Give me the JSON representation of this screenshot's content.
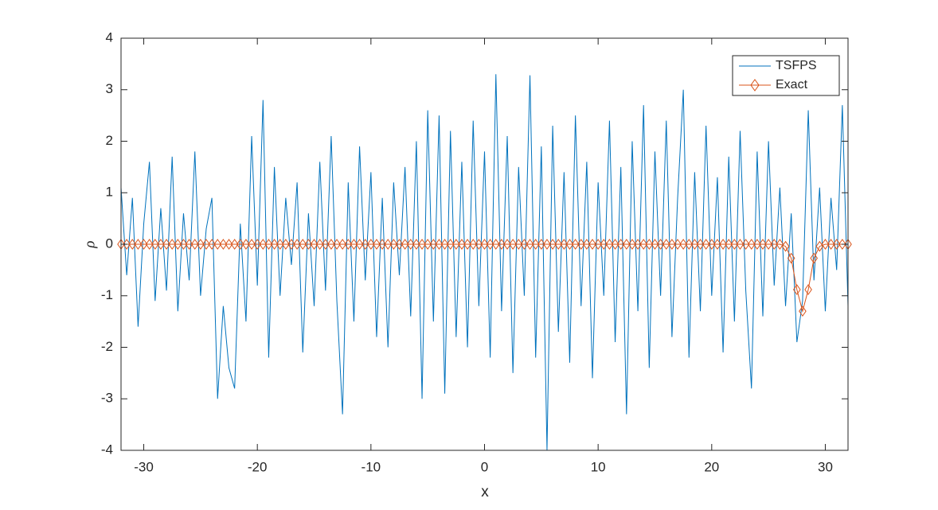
{
  "chart_data": {
    "type": "line",
    "x_label": "x",
    "y_label": "ρ",
    "x": [
      -32,
      -31.5,
      -31,
      -30.5,
      -30,
      -29.5,
      -29,
      -28.5,
      -28,
      -27.5,
      -27,
      -26.5,
      -26,
      -25.5,
      -25,
      -24.5,
      -24,
      -23.5,
      -23,
      -22.5,
      -22,
      -21.5,
      -21,
      -20.5,
      -20,
      -19.5,
      -19,
      -18.5,
      -18,
      -17.5,
      -17,
      -16.5,
      -16,
      -15.5,
      -15,
      -14.5,
      -14,
      -13.5,
      -13,
      -12.5,
      -12,
      -11.5,
      -11,
      -10.5,
      -10,
      -9.5,
      -9,
      -8.5,
      -8,
      -7.5,
      -7,
      -6.5,
      -6,
      -5.5,
      -5,
      -4.5,
      -4,
      -3.5,
      -3,
      -2.5,
      -2,
      -1.5,
      -1,
      -0.5,
      0,
      0.5,
      1,
      1.5,
      2,
      2.5,
      3,
      3.5,
      4,
      4.5,
      5,
      5.5,
      6,
      6.5,
      7,
      7.5,
      8,
      8.5,
      9,
      9.5,
      10,
      10.5,
      11,
      11.5,
      12,
      12.5,
      13,
      13.5,
      14,
      14.5,
      15,
      15.5,
      16,
      16.5,
      17,
      17.5,
      18,
      18.5,
      19,
      19.5,
      20,
      20.5,
      21,
      21.5,
      22,
      22.5,
      23,
      23.5,
      24,
      24.5,
      25,
      25.5,
      26,
      26.5,
      27,
      27.5,
      28,
      28.5,
      29,
      29.5,
      30,
      30.5,
      31,
      31.5,
      32
    ],
    "series": [
      {
        "name": "TSFPS",
        "color": "#0072bd",
        "marker": "none",
        "values": [
          1.1,
          -0.6,
          0.9,
          -1.6,
          0.4,
          1.6,
          -1.1,
          0.7,
          -0.9,
          1.7,
          -1.3,
          0.6,
          -0.7,
          1.8,
          -1.0,
          0.3,
          0.9,
          -3.0,
          -1.2,
          -2.4,
          -2.8,
          0.4,
          -1.5,
          2.1,
          -0.8,
          2.8,
          -2.2,
          1.5,
          -1.0,
          0.9,
          -0.4,
          1.2,
          -2.1,
          0.6,
          -1.2,
          1.6,
          -0.9,
          2.1,
          -1.1,
          -3.3,
          1.2,
          -1.5,
          1.9,
          -0.7,
          1.4,
          -1.8,
          0.9,
          -2.0,
          1.2,
          -0.6,
          1.5,
          -1.4,
          2.0,
          -3.0,
          2.6,
          -1.5,
          2.5,
          -2.9,
          2.2,
          -1.8,
          1.6,
          -2.0,
          2.4,
          -1.2,
          1.8,
          -2.2,
          3.3,
          -1.3,
          2.1,
          -2.5,
          1.5,
          -1.0,
          3.28,
          -2.2,
          1.9,
          -4.0,
          2.3,
          -1.7,
          1.4,
          -2.3,
          2.5,
          -1.2,
          1.6,
          -2.6,
          1.2,
          -1.0,
          2.4,
          -1.9,
          1.5,
          -3.3,
          2.0,
          -1.3,
          2.7,
          -2.4,
          1.8,
          -1.0,
          2.4,
          -1.8,
          0.9,
          3.0,
          -2.2,
          1.4,
          -1.3,
          2.3,
          -1.0,
          1.3,
          -2.1,
          1.7,
          -1.5,
          2.2,
          -0.9,
          -2.8,
          1.8,
          -1.4,
          2.0,
          -0.8,
          1.1,
          -1.2,
          0.6,
          -1.9,
          -1.1,
          2.6,
          -0.7,
          1.1,
          -1.3,
          0.9,
          -0.5,
          2.7,
          -1.2
        ]
      },
      {
        "name": "Exact",
        "color": "#d95319",
        "marker": "diamond",
        "values": [
          0,
          0,
          0,
          0,
          0,
          0,
          0,
          0,
          0,
          0,
          0,
          0,
          0,
          0,
          0,
          0,
          0,
          0,
          0,
          0,
          0,
          0,
          0,
          0,
          0,
          0,
          0,
          0,
          0,
          0,
          0,
          0,
          0,
          0,
          0,
          0,
          0,
          0,
          0,
          0,
          0,
          0,
          0,
          0,
          0,
          0,
          0,
          0,
          0,
          0,
          0,
          0,
          0,
          0,
          0,
          0,
          0,
          0,
          0,
          0,
          0,
          0,
          0,
          0,
          0,
          0,
          0,
          0,
          0,
          0,
          0,
          0,
          0,
          0,
          0,
          0,
          0,
          0,
          0,
          0,
          0,
          0,
          0,
          0,
          0,
          0,
          0,
          0,
          0,
          0,
          0,
          0,
          0,
          0,
          0,
          0,
          0,
          0,
          0,
          0,
          0,
          0,
          0,
          0,
          0,
          0,
          0,
          0,
          0,
          0,
          0,
          0,
          0,
          0,
          0,
          0,
          0,
          -0.04,
          -0.27,
          -0.88,
          -1.3,
          -0.88,
          -0.27,
          -0.04,
          0,
          0,
          0,
          0,
          0
        ]
      }
    ],
    "xlim": [
      -32,
      32
    ],
    "xticks": [
      -30,
      -20,
      -10,
      0,
      10,
      20,
      30
    ],
    "ylim": [
      -4,
      4
    ],
    "yticks": [
      -4,
      -3,
      -2,
      -1,
      0,
      1,
      2,
      3,
      4
    ],
    "legend": "top-right"
  }
}
